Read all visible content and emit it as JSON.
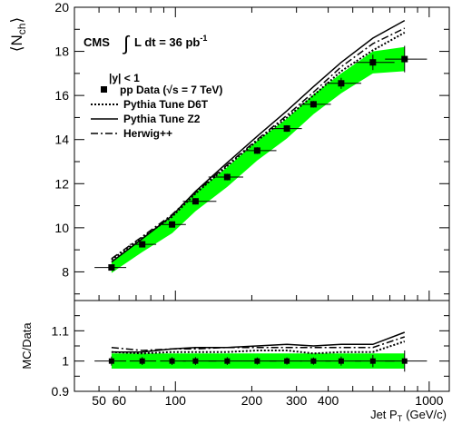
{
  "figure": {
    "cms_label": "CMS",
    "lumi_label": "L dt = 36 pb",
    "lumi_exponent": "-1",
    "rapidity_cut": "|y| < 1"
  },
  "legend": {
    "data": {
      "label": "pp Data (",
      "sqrt_label": "s = 7 TeV)"
    },
    "d6t": {
      "label": "Pythia Tune D6T"
    },
    "z2": {
      "label": "Pythia Tune Z2"
    },
    "herwig": {
      "label": "Herwig++"
    }
  },
  "colors": {
    "band": "#00ff00",
    "line": "#000000",
    "background": "#ffffff"
  },
  "chart_data": [
    {
      "type": "line",
      "panel": "top",
      "ylabel_main": "N",
      "ylabel_sub": "ch",
      "xscale": "log",
      "xlim": [
        40,
        1200
      ],
      "ylim": [
        6.7,
        20
      ],
      "yticks": [
        8,
        10,
        12,
        14,
        16,
        18,
        20
      ],
      "grid": false,
      "legend_position": "top-left",
      "data": {
        "x": [
          56,
          74,
          97,
          120,
          160,
          210,
          275,
          350,
          450,
          600,
          800
        ],
        "x_err_low": [
          8,
          8,
          10,
          13,
          25,
          25,
          40,
          40,
          60,
          90,
          130
        ],
        "x_err_high": [
          8,
          10,
          13,
          25,
          25,
          40,
          40,
          60,
          90,
          130,
          180
        ],
        "y": [
          8.2,
          9.25,
          10.15,
          11.2,
          12.3,
          13.5,
          14.5,
          15.6,
          16.55,
          17.5,
          17.65
        ],
        "y_err": [
          0.12,
          0.12,
          0.13,
          0.14,
          0.15,
          0.15,
          0.15,
          0.15,
          0.25,
          0.35,
          0.6
        ]
      },
      "band": {
        "x": [
          56,
          74,
          97,
          120,
          160,
          210,
          275,
          350,
          450,
          600,
          800
        ],
        "low": [
          7.95,
          8.9,
          9.75,
          10.75,
          11.85,
          13.05,
          14.05,
          15.15,
          16.1,
          17.0,
          17.1
        ],
        "high": [
          8.45,
          9.55,
          10.5,
          11.6,
          12.75,
          13.95,
          14.95,
          16.05,
          17.0,
          18.0,
          18.2
        ]
      },
      "series": [
        {
          "style": "dotted",
          "x": [
            56,
            74,
            97,
            120,
            160,
            210,
            275,
            350,
            450,
            600,
            800
          ],
          "y": [
            8.55,
            9.55,
            10.5,
            11.55,
            12.8,
            13.95,
            15.0,
            16.0,
            17.1,
            18.05,
            18.85
          ]
        },
        {
          "style": "solid",
          "x": [
            56,
            74,
            97,
            120,
            160,
            210,
            275,
            350,
            450,
            600,
            800
          ],
          "y": [
            8.45,
            9.5,
            10.55,
            11.65,
            12.95,
            14.15,
            15.3,
            16.4,
            17.5,
            18.6,
            19.4
          ]
        },
        {
          "style": "dashdot",
          "x": [
            56,
            74,
            97,
            120,
            160,
            210,
            275,
            350,
            450,
            600,
            800
          ],
          "y": [
            8.6,
            9.6,
            10.6,
            11.6,
            12.85,
            14.0,
            15.1,
            16.15,
            17.3,
            18.35,
            19.05
          ]
        }
      ]
    },
    {
      "type": "line",
      "panel": "ratio",
      "ylabel": "MC/Data",
      "xlabel_main": "Jet P",
      "xlabel_sub": "T",
      "xlabel_unit": "(GeV/c)",
      "xscale": "log",
      "xlim": [
        40,
        1200
      ],
      "ylim": [
        0.9,
        1.2
      ],
      "yticks": [
        0.9,
        1,
        1.1
      ],
      "xticks": [
        50,
        60,
        100,
        200,
        300,
        400,
        1000
      ],
      "grid": false,
      "data": {
        "x": [
          56,
          74,
          97,
          120,
          160,
          210,
          275,
          350,
          450,
          600,
          800
        ],
        "y": [
          1,
          1,
          1,
          1,
          1,
          1,
          1,
          1,
          1,
          1,
          1
        ],
        "y_err": [
          0.015,
          0.013,
          0.013,
          0.013,
          0.013,
          0.012,
          0.012,
          0.012,
          0.015,
          0.02,
          0.035
        ]
      },
      "band": {
        "x": [
          56,
          74,
          97,
          120,
          160,
          210,
          275,
          350,
          450,
          600,
          800
        ],
        "low": [
          0.975,
          0.975,
          0.975,
          0.975,
          0.975,
          0.975,
          0.975,
          0.975,
          0.975,
          0.975,
          0.975
        ],
        "high": [
          1.025,
          1.025,
          1.025,
          1.025,
          1.025,
          1.025,
          1.025,
          1.025,
          1.025,
          1.025,
          1.025
        ]
      },
      "series": [
        {
          "style": "dotted",
          "x": [
            56,
            74,
            97,
            120,
            160,
            210,
            275,
            350,
            450,
            600,
            800
          ],
          "y": [
            1.03,
            1.025,
            1.03,
            1.03,
            1.03,
            1.035,
            1.035,
            1.025,
            1.03,
            1.03,
            1.065
          ]
        },
        {
          "style": "solid",
          "x": [
            56,
            74,
            97,
            120,
            160,
            210,
            275,
            350,
            450,
            600,
            800
          ],
          "y": [
            1.03,
            1.03,
            1.04,
            1.045,
            1.045,
            1.05,
            1.055,
            1.05,
            1.055,
            1.055,
            1.095
          ]
        },
        {
          "style": "dashdot",
          "x": [
            56,
            74,
            97,
            120,
            160,
            210,
            275,
            350,
            450,
            600,
            800
          ],
          "y": [
            1.045,
            1.035,
            1.04,
            1.04,
            1.045,
            1.045,
            1.045,
            1.045,
            1.045,
            1.045,
            1.08
          ]
        }
      ]
    }
  ]
}
